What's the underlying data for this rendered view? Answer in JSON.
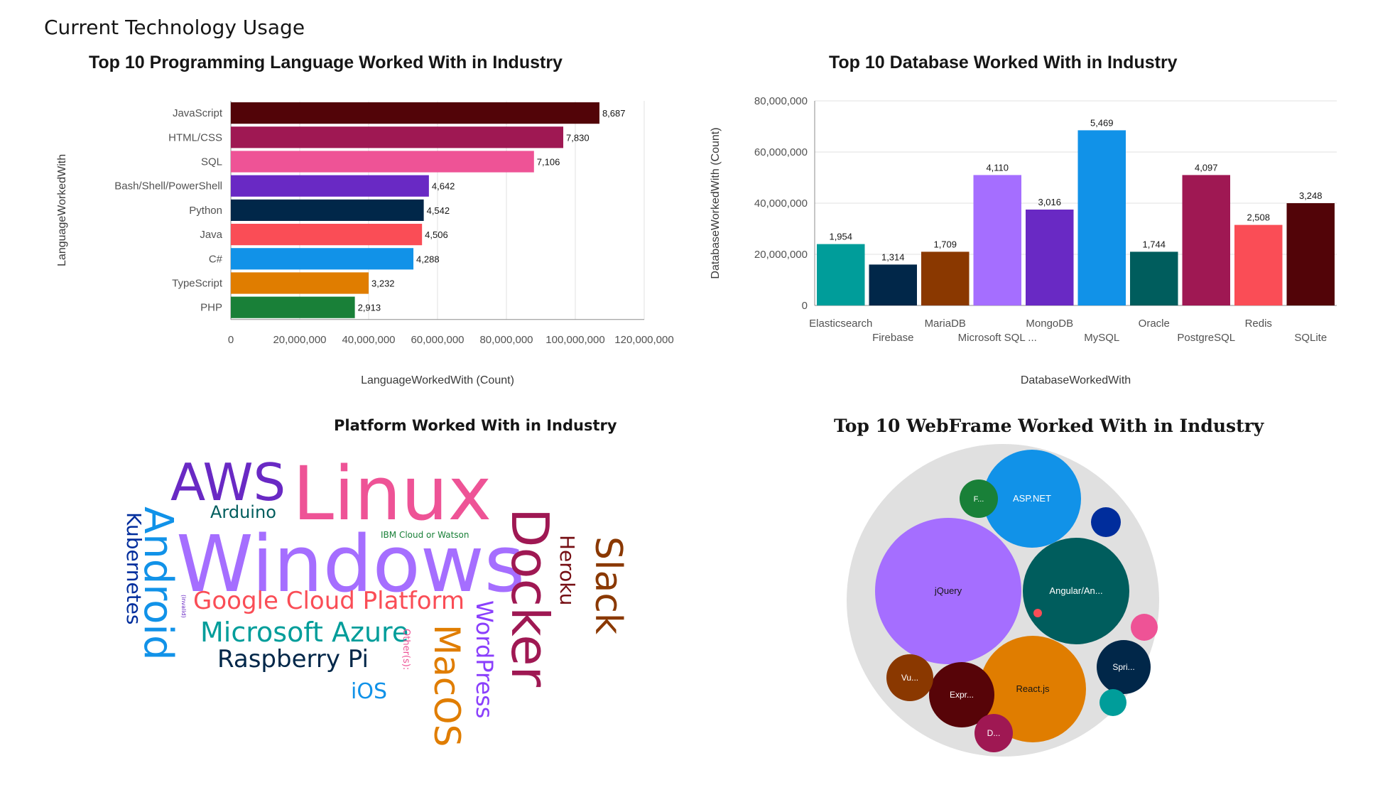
{
  "page": {
    "title": "Current Technology Usage"
  },
  "chart_data": [
    {
      "id": "languages",
      "type": "bar",
      "orientation": "horizontal",
      "title": "Top 10 Programming Language Worked With in Industry",
      "xlabel": "LanguageWorkedWith (Count)",
      "ylabel": "LanguageWorkedWith",
      "xlim": [
        0,
        120000000
      ],
      "ticks": [
        "0",
        "20,000,000",
        "40,000,000",
        "60,000,000",
        "80,000,000",
        "100,000,000",
        "120,000,000"
      ],
      "tick_values": [
        0,
        20000000,
        40000000,
        60000000,
        80000000,
        100000000,
        120000000
      ],
      "grid": true,
      "categories": [
        "JavaScript",
        "HTML/CSS",
        "SQL",
        "Bash/Shell/PowerShell",
        "Python",
        "Java",
        "C#",
        "TypeScript",
        "PHP"
      ],
      "values": [
        107000000,
        96500000,
        88000000,
        57500000,
        56000000,
        55500000,
        53000000,
        40000000,
        36000000
      ],
      "data_labels": [
        "8,687",
        "7,830",
        "7,106",
        "4,642",
        "4,542",
        "4,506",
        "4,288",
        "3,232",
        "2,913"
      ],
      "colors": [
        "#520408",
        "#9f1853",
        "#ee5396",
        "#6929c4",
        "#012749",
        "#fa4d56",
        "#1192e8",
        "#e07d00",
        "#198038"
      ]
    },
    {
      "id": "databases",
      "type": "bar",
      "orientation": "vertical",
      "title": "Top 10 Database Worked With in Industry",
      "xlabel": "DatabaseWorkedWith",
      "ylabel": "DatabaseWorkedWith (Count)",
      "ylim": [
        0,
        80000000
      ],
      "ticks": [
        "0",
        "20,000,000",
        "40,000,000",
        "60,000,000",
        "80,000,000"
      ],
      "tick_values": [
        0,
        20000000,
        40000000,
        60000000,
        80000000
      ],
      "grid": true,
      "categories": [
        "Elasticsearch",
        "Firebase",
        "MariaDB",
        "Microsoft SQL ...",
        "MongoDB",
        "MySQL",
        "Oracle",
        "PostgreSQL",
        "Redis",
        "SQLite"
      ],
      "values": [
        24000000,
        16000000,
        21000000,
        51000000,
        37500000,
        68500000,
        21000000,
        51000000,
        31500000,
        40000000
      ],
      "data_labels": [
        "1,954",
        "1,314",
        "1,709",
        "4,110",
        "3,016",
        "5,469",
        "1,744",
        "4,097",
        "2,508",
        "3,248"
      ],
      "colors": [
        "#009d9a",
        "#012749",
        "#8a3800",
        "#a56eff",
        "#6929c4",
        "#1192e8",
        "#005d5d",
        "#9f1853",
        "#fa4d56",
        "#520408"
      ]
    }
  ],
  "wordcloud": {
    "title": "Platform Worked With in Industry",
    "words": [
      {
        "text": "Linux",
        "color": "#ee5396"
      },
      {
        "text": "Windows",
        "color": "#a56eff"
      },
      {
        "text": "Docker",
        "color": "#9f1853"
      },
      {
        "text": "AWS",
        "color": "#6929c4"
      },
      {
        "text": "Android",
        "color": "#1192e8"
      },
      {
        "text": "Slack",
        "color": "#8a3800"
      },
      {
        "text": "MacOS",
        "color": "#e07d00"
      },
      {
        "text": "Google Cloud Platform",
        "color": "#fa4d56"
      },
      {
        "text": "Microsoft Azure",
        "color": "#009d9a"
      },
      {
        "text": "Raspberry Pi",
        "color": "#012749"
      },
      {
        "text": "WordPress",
        "color": "#8a3ffc"
      },
      {
        "text": "Kubernetes",
        "color": "#002d9c"
      },
      {
        "text": "Heroku",
        "color": "#750e13"
      },
      {
        "text": "Arduino",
        "color": "#005d5d"
      },
      {
        "text": "iOS",
        "color": "#1192e8"
      },
      {
        "text": "IBM Cloud or Watson",
        "color": "#198038"
      },
      {
        "text": "Other(s):",
        "color": "#ee5396"
      },
      {
        "text": "(invalid)",
        "color": "#6929c4"
      }
    ]
  },
  "bubble": {
    "title": "Top 10 WebFrame Worked With in Industry",
    "bubbles": [
      {
        "label": "jQuery",
        "color": "#a56eff",
        "label_color": "#161616"
      },
      {
        "label": "Angular/An...",
        "color": "#005d5d",
        "label_color": "#ffffff"
      },
      {
        "label": "React.js",
        "color": "#e07d00",
        "label_color": "#161616"
      },
      {
        "label": "ASP.NET",
        "color": "#1192e8",
        "label_color": "#ffffff"
      },
      {
        "label": "Spri...",
        "color": "#012749",
        "label_color": "#ffffff"
      },
      {
        "label": "Expr...",
        "color": "#570408",
        "label_color": "#ffffff"
      },
      {
        "label": "Vu...",
        "color": "#8a3800",
        "label_color": "#ffffff"
      },
      {
        "label": "D...",
        "color": "#9f1853",
        "label_color": "#ffffff"
      },
      {
        "label": "F...",
        "color": "#198038",
        "label_color": "#ffffff"
      },
      {
        "label": "",
        "color": "#002d9c",
        "label_color": "#ffffff"
      },
      {
        "label": "",
        "color": "#ee5396",
        "label_color": "#ffffff"
      },
      {
        "label": "",
        "color": "#009d9a",
        "label_color": "#ffffff"
      },
      {
        "label": "",
        "color": "#fa4d56",
        "label_color": "#ffffff"
      }
    ]
  }
}
